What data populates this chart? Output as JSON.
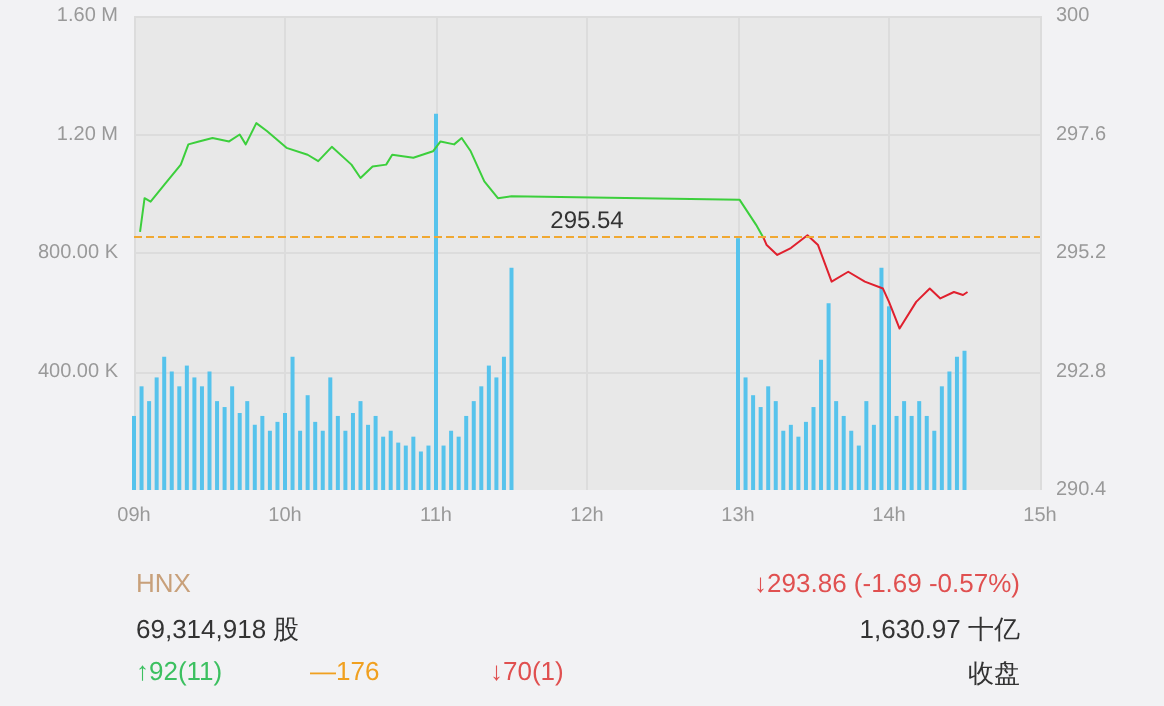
{
  "chart_data": {
    "type": "bar",
    "x": [
      9.0,
      9.05,
      9.1,
      9.15,
      9.2,
      9.25,
      9.3,
      9.35,
      9.4,
      9.45,
      9.5,
      9.55,
      9.6,
      9.65,
      9.7,
      9.75,
      9.8,
      9.85,
      9.9,
      9.95,
      10.0,
      10.05,
      10.1,
      10.15,
      10.2,
      10.25,
      10.3,
      10.35,
      10.4,
      10.45,
      10.5,
      10.55,
      10.6,
      10.65,
      10.7,
      10.75,
      10.8,
      10.85,
      10.9,
      10.95,
      11.0,
      11.05,
      11.1,
      11.15,
      11.2,
      11.25,
      11.3,
      11.35,
      11.4,
      11.45,
      11.5,
      13.0,
      13.05,
      13.1,
      13.15,
      13.2,
      13.25,
      13.3,
      13.35,
      13.4,
      13.45,
      13.5,
      13.55,
      13.6,
      13.65,
      13.7,
      13.75,
      13.8,
      13.85,
      13.9,
      13.95,
      14.0,
      14.05,
      14.1,
      14.15,
      14.2,
      14.25,
      14.3,
      14.35,
      14.4,
      14.45,
      14.5
    ],
    "series": [
      {
        "color": "#56c3ec",
        "values": [
          250000,
          350000,
          300000,
          380000,
          450000,
          400000,
          350000,
          420000,
          380000,
          350000,
          400000,
          300000,
          280000,
          350000,
          260000,
          300000,
          220000,
          250000,
          200000,
          230000,
          260000,
          450000,
          200000,
          320000,
          230000,
          200000,
          380000,
          250000,
          200000,
          260000,
          300000,
          220000,
          250000,
          180000,
          200000,
          160000,
          150000,
          180000,
          130000,
          150000,
          1270000,
          150000,
          200000,
          180000,
          250000,
          300000,
          350000,
          420000,
          380000,
          450000,
          750000,
          850000,
          380000,
          320000,
          280000,
          350000,
          300000,
          200000,
          220000,
          180000,
          230000,
          280000,
          440000,
          630000,
          300000,
          250000,
          200000,
          150000,
          300000,
          220000,
          750000,
          620000,
          250000,
          300000,
          250000,
          300000,
          250000,
          200000,
          350000,
          400000,
          450000,
          470000
        ]
      },
      {
        "type": "line",
        "axis": "y2",
        "color": "#3ccf3c",
        "x": [
          9.04,
          9.07,
          9.11,
          9.2,
          9.31,
          9.36,
          9.43,
          9.52,
          9.63,
          9.7,
          9.74,
          9.81,
          9.88,
          10.01,
          10.15,
          10.22,
          10.31,
          10.44,
          10.5,
          10.58,
          10.67,
          10.71,
          10.85,
          10.98,
          11.03,
          11.12,
          11.17,
          11.23,
          11.32,
          11.41,
          11.5,
          13.01,
          13.12,
          13.17
        ],
        "values": [
          295.63,
          296.31,
          296.24,
          296.58,
          296.99,
          297.4,
          297.46,
          297.53,
          297.46,
          297.6,
          297.4,
          297.83,
          297.67,
          297.33,
          297.19,
          297.06,
          297.35,
          296.99,
          296.72,
          296.95,
          296.99,
          297.19,
          297.13,
          297.26,
          297.46,
          297.4,
          297.53,
          297.26,
          296.65,
          296.31,
          296.35,
          296.28,
          295.77,
          295.5
        ]
      },
      {
        "type": "line",
        "axis": "y2",
        "color": "#e0202e",
        "x": [
          13.17,
          13.19,
          13.26,
          13.35,
          13.46,
          13.53,
          13.62,
          13.73,
          13.84,
          13.96,
          14.0,
          14.07,
          14.18,
          14.27,
          14.34,
          14.43,
          14.49,
          14.52
        ],
        "values": [
          295.5,
          295.36,
          295.16,
          295.3,
          295.56,
          295.36,
          294.62,
          294.82,
          294.62,
          294.48,
          294.21,
          293.67,
          294.21,
          294.48,
          294.28,
          294.41,
          294.35,
          294.41
        ]
      }
    ],
    "xlim": [
      9,
      15
    ],
    "xticks": [
      {
        "value": 9,
        "label": "09h"
      },
      {
        "value": 10,
        "label": "10h"
      },
      {
        "value": 11,
        "label": "11h"
      },
      {
        "value": 12,
        "label": "12h"
      },
      {
        "value": 13,
        "label": "13h"
      },
      {
        "value": 14,
        "label": "14h"
      },
      {
        "value": 15,
        "label": "15h"
      }
    ],
    "ylim": [
      0,
      1600000
    ],
    "yticks": [
      {
        "value": 400000,
        "label": "400.00 K"
      },
      {
        "value": 800000,
        "label": "800.00 K"
      },
      {
        "value": 1200000,
        "label": "1.20 M"
      },
      {
        "value": 1600000,
        "label": "1.60 M"
      }
    ],
    "y2lim": [
      290.4,
      300
    ],
    "y2ticks": [
      290.4,
      292.8,
      295.2,
      297.6,
      300
    ],
    "ref_lines": [
      {
        "axis": "y2",
        "value": 295.54,
        "label": "295.54",
        "color": "#f0a832",
        "line_style": "dashed"
      }
    ],
    "grid": true,
    "annotations": [
      "HNX",
      "↓293.86 (-1.69 -0.57%)",
      "69,314,918 股",
      "1,630.97 十亿",
      "↑92(11)",
      "—176",
      "↓70(1)",
      "收盘"
    ]
  }
}
